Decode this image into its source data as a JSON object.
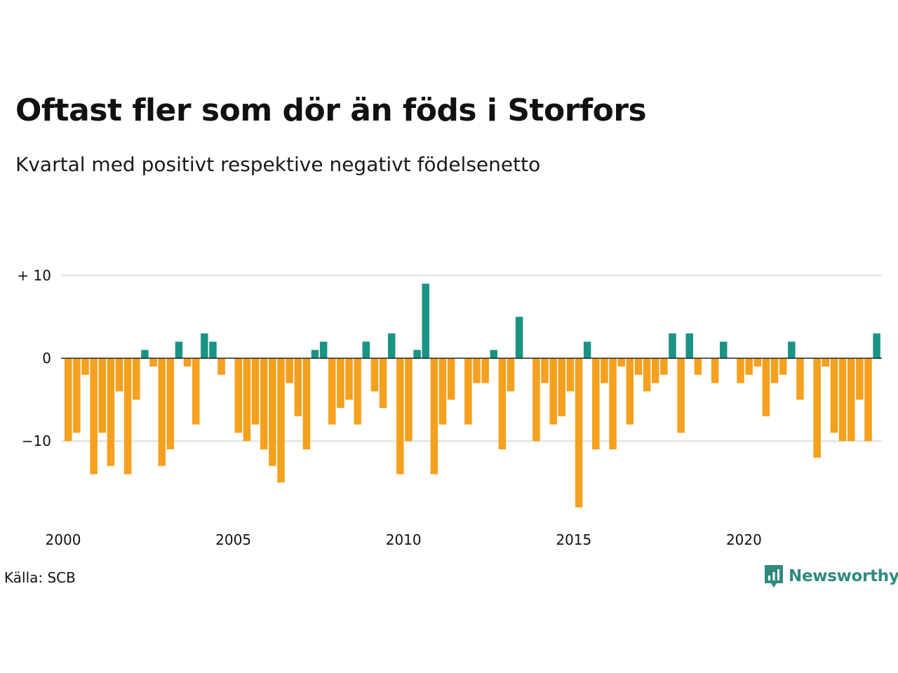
{
  "title": "Oftast fler som dör än föds i Storfors",
  "subtitle": "Kvartal med positivt respektive negativt födelsenetto",
  "source": "Källa: SCB",
  "brand": "Newsworthy",
  "colors": {
    "positive": "#1b9384",
    "negative": "#f5a01f",
    "grid": "#dddddd",
    "zero": "#222222",
    "brand": "#2f8a7e"
  },
  "chart_data": {
    "type": "bar",
    "start_year": 2000,
    "ylim": [
      -18,
      10
    ],
    "y_ticks": [
      {
        "value": 10,
        "label": "+ 10"
      },
      {
        "value": 0,
        "label": "0"
      },
      {
        "value": -10,
        "label": "−10"
      }
    ],
    "x_ticks": [
      {
        "year": 2000,
        "label": "2000"
      },
      {
        "year": 2005,
        "label": "2005"
      },
      {
        "year": 2010,
        "label": "2010"
      },
      {
        "year": 2015,
        "label": "2015"
      },
      {
        "year": 2020,
        "label": "2020"
      }
    ],
    "values": [
      -10,
      -9,
      -2,
      -14,
      -9,
      -13,
      -4,
      -14,
      -5,
      1,
      -1,
      -13,
      -11,
      2,
      -1,
      -8,
      3,
      2,
      -2,
      0,
      -9,
      -10,
      -8,
      -11,
      -13,
      -15,
      -3,
      -7,
      -11,
      1,
      2,
      -8,
      -6,
      -5,
      -8,
      2,
      -4,
      -6,
      3,
      -14,
      -10,
      1,
      9,
      -14,
      -8,
      -5,
      0,
      -8,
      -3,
      -3,
      1,
      -11,
      -4,
      5,
      0,
      -10,
      -3,
      -8,
      -7,
      -4,
      -18,
      2,
      -11,
      -3,
      -11,
      -1,
      -8,
      -2,
      -4,
      -3,
      -2,
      3,
      -9,
      3,
      -2,
      0,
      -3,
      2,
      0,
      -3,
      -2,
      -1,
      -7,
      -3,
      -2,
      2,
      -5,
      0,
      -12,
      -1,
      -9,
      -10,
      -10,
      -5,
      -10,
      3
    ]
  }
}
